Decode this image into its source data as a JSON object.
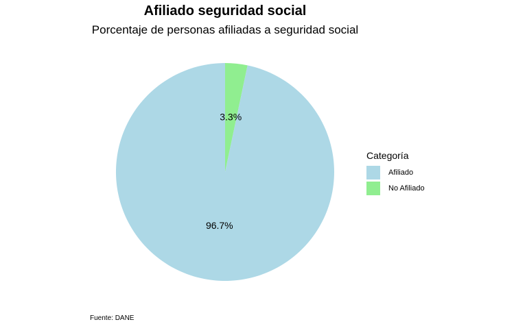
{
  "chart_data": {
    "type": "pie",
    "title": "Afiliado seguridad social",
    "subtitle": "Porcentaje de personas afiliadas a seguridad social",
    "legend_title": "Categoría",
    "legend_position": "right",
    "categories": [
      "Afiliado",
      "No Afiliado"
    ],
    "values": [
      96.7,
      3.3
    ],
    "labels": [
      "96.7%",
      "3.3%"
    ],
    "colors": [
      "#add8e6",
      "#90ee90"
    ],
    "caption": "Fuente: DANE"
  }
}
